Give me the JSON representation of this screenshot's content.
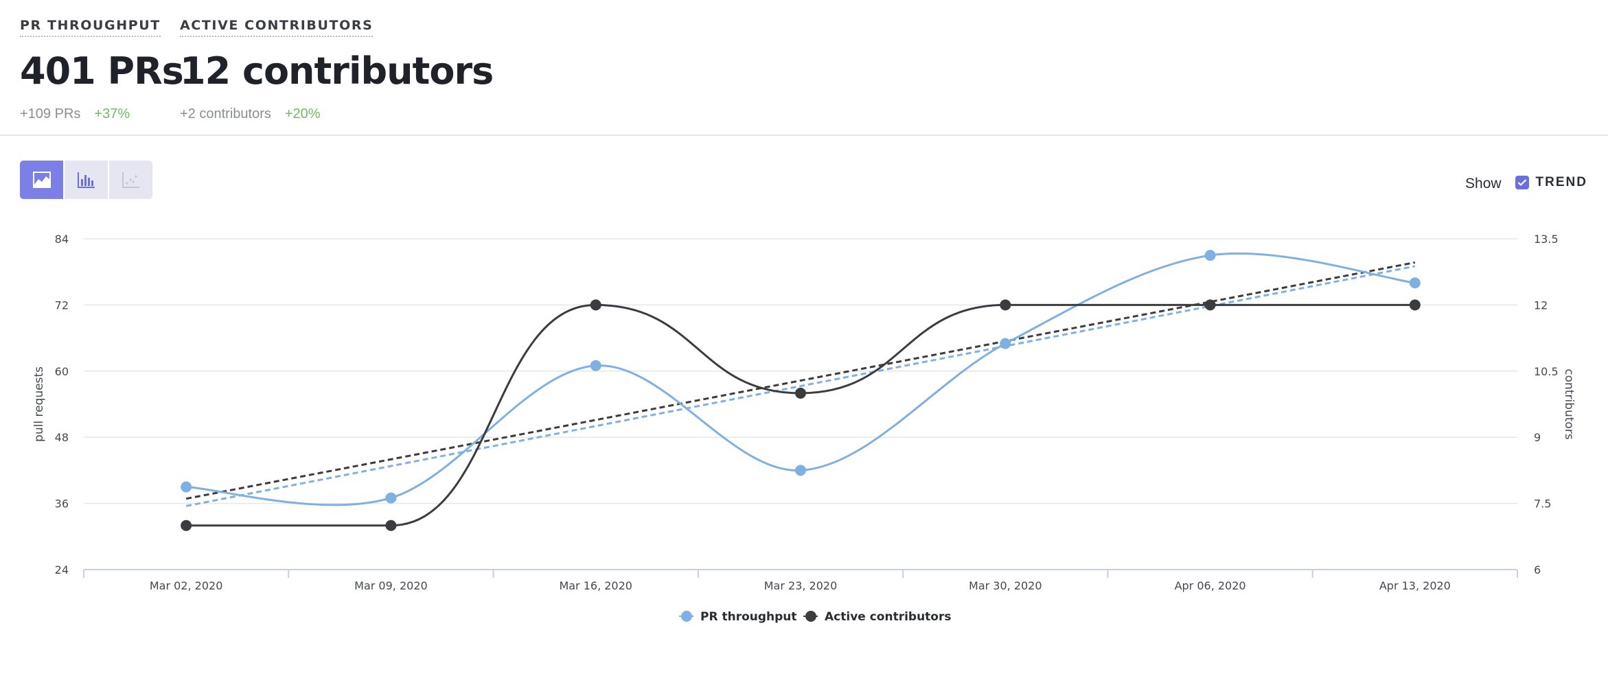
{
  "metrics": [
    {
      "label": "PR THROUGHPUT",
      "value": "401 PRs",
      "delta": "+109 PRs",
      "pct": "+37%"
    },
    {
      "label": "ACTIVE CONTRIBUTORS",
      "value": "12 contributors",
      "delta": "+2 contributors",
      "pct": "+20%"
    }
  ],
  "toolbar": {
    "buttons": [
      {
        "icon": "area-chart-icon",
        "active": true
      },
      {
        "icon": "bar-chart-icon",
        "active": false
      },
      {
        "icon": "scatter-chart-icon",
        "active": false
      }
    ]
  },
  "show": {
    "label": "Show",
    "trend_label": "TREND",
    "trend_checked": true
  },
  "chart_data": {
    "type": "line",
    "categories": [
      "Mar 02, 2020",
      "Mar 09, 2020",
      "Mar 16, 2020",
      "Mar 23, 2020",
      "Mar 30, 2020",
      "Apr 06, 2020",
      "Apr 13, 2020"
    ],
    "series": [
      {
        "name": "PR throughput",
        "axis": "left",
        "color": "#7fb0e3",
        "values": [
          39,
          37,
          61,
          42,
          65,
          81,
          76
        ]
      },
      {
        "name": "Active contributors",
        "axis": "right",
        "color": "#3b3c40",
        "values": [
          7,
          7,
          12,
          10,
          12,
          12,
          12
        ]
      }
    ],
    "trend": {
      "show": true,
      "style": "dashed"
    },
    "y_left": {
      "label": "pull requests",
      "range": [
        24,
        84
      ],
      "ticks": [
        "24",
        "36",
        "48",
        "60",
        "72",
        "84"
      ]
    },
    "y_right": {
      "label": "contributors",
      "range": [
        6,
        13.5
      ],
      "ticks": [
        "6",
        "7.5",
        "9",
        "10.5",
        "12",
        "13.5"
      ]
    },
    "grid": true,
    "legend": "bottom-center"
  }
}
